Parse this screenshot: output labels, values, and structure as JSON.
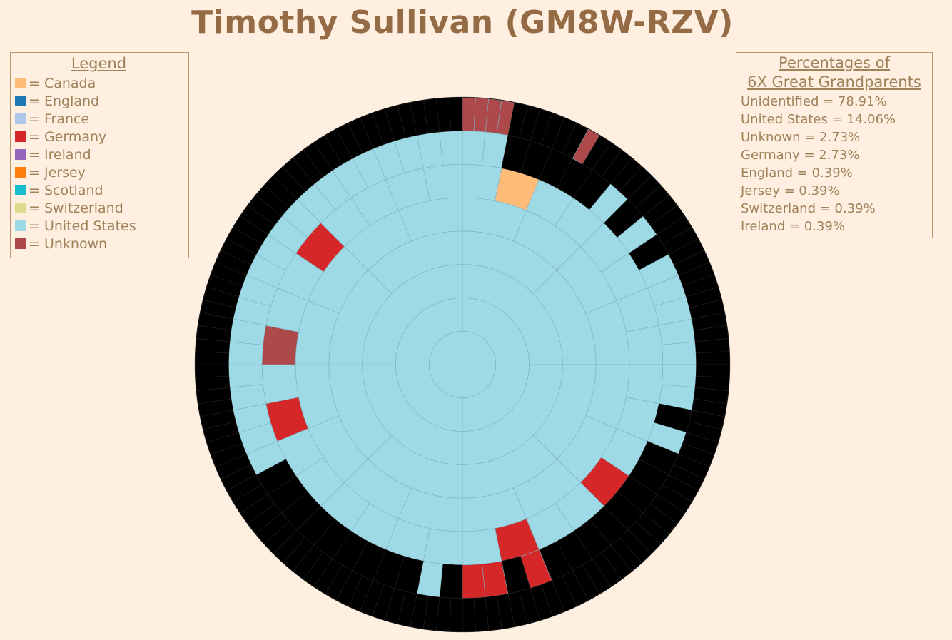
{
  "title": "Timothy Sullivan (GM8W-RZV)",
  "legend": {
    "header": "Legend",
    "items": [
      {
        "label": "= Canada",
        "color": "#FFBB78"
      },
      {
        "label": "= England",
        "color": "#1F77B4"
      },
      {
        "label": "= France",
        "color": "#AEC7E8"
      },
      {
        "label": "= Germany",
        "color": "#D62728"
      },
      {
        "label": "= Ireland",
        "color": "#9467BD"
      },
      {
        "label": "= Jersey",
        "color": "#FF7F0E"
      },
      {
        "label": "= Scotland",
        "color": "#17BECF"
      },
      {
        "label": "= Switzerland",
        "color": "#DBDB8D"
      },
      {
        "label": "= United States",
        "color": "#9EDAE5"
      },
      {
        "label": "= Unknown",
        "color": "#AD494A"
      }
    ]
  },
  "percentages": {
    "header_line1": "Percentages of",
    "header_line2": "6X Great Grandparents",
    "items": [
      "Unidentified = 78.91%",
      "United States = 14.06%",
      "Unknown = 2.73%",
      "Germany = 2.73%",
      "England = 0.39%",
      "Jersey = 0.39%",
      "Switzerland = 0.39%",
      "Ireland = 0.39%"
    ]
  },
  "chart_data": {
    "type": "sunburst",
    "generations": 9,
    "colors": {
      "Canada": "#FFBB78",
      "England": "#1F77B4",
      "France": "#AEC7E8",
      "Germany": "#D62728",
      "Ireland": "#9467BD",
      "Jersey": "#FF7F0E",
      "Scotland": "#17BECF",
      "Switzerland": "#DBDB8D",
      "United States": "#9EDAE5",
      "Unknown": "#AD494A",
      "Unidentified": "#000000"
    },
    "ring_codes": {
      "U": "United States",
      "G": "Germany",
      "K": "Unknown",
      "E": "England",
      "C": "Canada",
      "F": "France",
      "I": "Ireland",
      "S": "Scotland",
      "J": "Jersey",
      "W": "Switzerland",
      "X": "Unidentified"
    },
    "rings": [
      "U",
      "UU",
      "UUUU",
      "UUUUUUUU",
      "UUUUUUUUUUUUUUUU",
      "UCUUUUUUUUUGUUGUUUUUUUGUKUUGUUUU",
      "UUXXXXXUXUXUUUUUUUXUXXXXXXXXGXGGXUXXXXXXXXXUUUUUUUUUUUUUUUUUUUUU",
      "KKKKXXXXXXKXXXXXXXXXXXXXXXXXXXXXXXXXXXXXXXXXXXXXXXXXXXXXXXXXXXXXXXXXXXXXXXXXXXXXXXXXXXXXXXXXXXXXXXXXXXXXXXXXXXXXXXXXXXXXXXXXXXXX"
    ]
  }
}
